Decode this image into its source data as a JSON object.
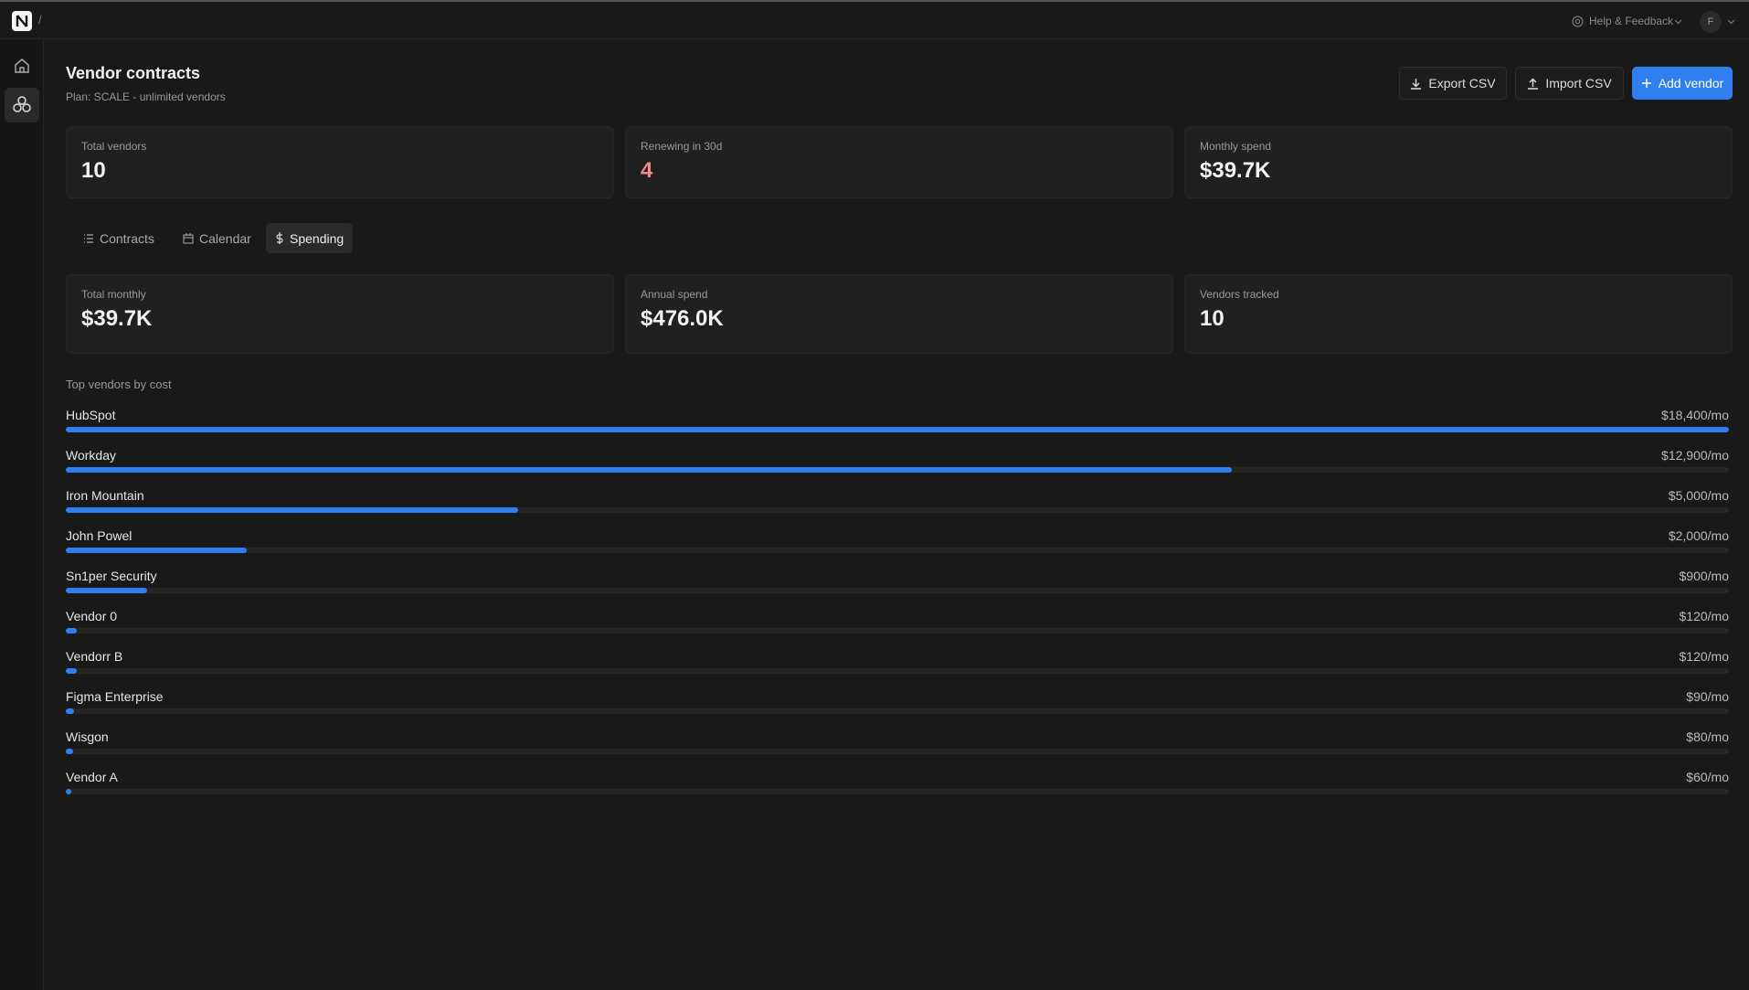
{
  "header": {
    "breadcrumb": "/",
    "help": "Help & Feedback",
    "avatar": "F"
  },
  "page": {
    "title": "Vendor contracts",
    "plan": "Plan: SCALE - unlimited vendors"
  },
  "actions": [
    "Export CSV",
    "Import CSV",
    "Add vendor"
  ],
  "stats": [
    {
      "label": "Total vendors",
      "value": "10"
    },
    {
      "label": "Renewing in 30d",
      "value": "4"
    },
    {
      "label": "Monthly spend",
      "value": "$39.7K"
    }
  ],
  "tabs": [
    "Contracts",
    "Calendar",
    "Spending"
  ],
  "spending_stats": [
    {
      "label": "Total monthly",
      "value": "$39.7K"
    },
    {
      "label": "Annual spend",
      "value": "$476.0K"
    },
    {
      "label": "Vendors tracked",
      "value": "10"
    }
  ],
  "top_vendors": {
    "title": "Top vendors by cost",
    "items": [
      {
        "name": "HubSpot",
        "cost": 18400,
        "cost_label": "$18,400/mo"
      },
      {
        "name": "Workday",
        "cost": 12900,
        "cost_label": "$12,900/mo"
      },
      {
        "name": "Iron Mountain",
        "cost": 5000,
        "cost_label": "$5,000/mo"
      },
      {
        "name": "John Powel",
        "cost": 2000,
        "cost_label": "$2,000/mo"
      },
      {
        "name": "Sn1per Security",
        "cost": 900,
        "cost_label": "$900/mo"
      },
      {
        "name": "Vendor 0",
        "cost": 120,
        "cost_label": "$120/mo"
      },
      {
        "name": "Vendorr B",
        "cost": 120,
        "cost_label": "$120/mo"
      },
      {
        "name": "Figma Enterprise",
        "cost": 90,
        "cost_label": "$90/mo"
      },
      {
        "name": "Wisgon",
        "cost": 80,
        "cost_label": "$80/mo"
      },
      {
        "name": "Vendor A",
        "cost": 60,
        "cost_label": "$60/mo"
      }
    ]
  }
}
